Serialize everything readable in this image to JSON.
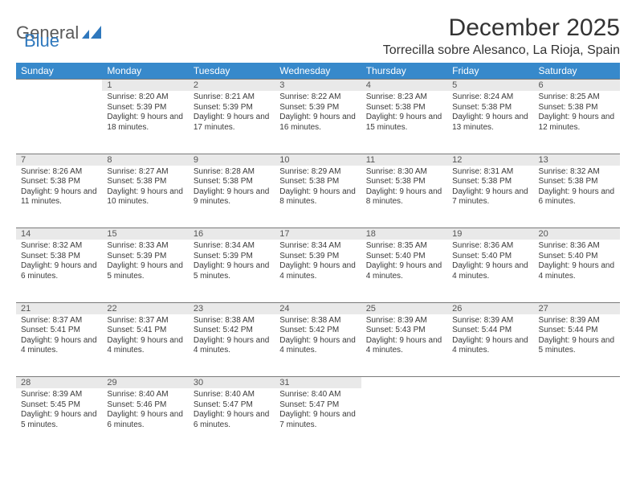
{
  "logo": {
    "text1": "General",
    "text2": "Blue"
  },
  "title": "December 2025",
  "location": "Torrecilla sobre Alesanco, La Rioja, Spain",
  "colors": {
    "header_bg": "#3789cb",
    "header_text": "#ffffff",
    "daynum_bg": "#e9e9e9",
    "daynum_border": "#7a7a7a",
    "body_text": "#3a3a3a",
    "logo_gray": "#5a5a5a",
    "logo_blue": "#2f78bd"
  },
  "weekdays": [
    "Sunday",
    "Monday",
    "Tuesday",
    "Wednesday",
    "Thursday",
    "Friday",
    "Saturday"
  ],
  "weeks": [
    [
      null,
      {
        "n": "1",
        "sr": "8:20 AM",
        "ss": "5:39 PM",
        "dl": "9 hours and 18 minutes."
      },
      {
        "n": "2",
        "sr": "8:21 AM",
        "ss": "5:39 PM",
        "dl": "9 hours and 17 minutes."
      },
      {
        "n": "3",
        "sr": "8:22 AM",
        "ss": "5:39 PM",
        "dl": "9 hours and 16 minutes."
      },
      {
        "n": "4",
        "sr": "8:23 AM",
        "ss": "5:38 PM",
        "dl": "9 hours and 15 minutes."
      },
      {
        "n": "5",
        "sr": "8:24 AM",
        "ss": "5:38 PM",
        "dl": "9 hours and 13 minutes."
      },
      {
        "n": "6",
        "sr": "8:25 AM",
        "ss": "5:38 PM",
        "dl": "9 hours and 12 minutes."
      }
    ],
    [
      {
        "n": "7",
        "sr": "8:26 AM",
        "ss": "5:38 PM",
        "dl": "9 hours and 11 minutes."
      },
      {
        "n": "8",
        "sr": "8:27 AM",
        "ss": "5:38 PM",
        "dl": "9 hours and 10 minutes."
      },
      {
        "n": "9",
        "sr": "8:28 AM",
        "ss": "5:38 PM",
        "dl": "9 hours and 9 minutes."
      },
      {
        "n": "10",
        "sr": "8:29 AM",
        "ss": "5:38 PM",
        "dl": "9 hours and 8 minutes."
      },
      {
        "n": "11",
        "sr": "8:30 AM",
        "ss": "5:38 PM",
        "dl": "9 hours and 8 minutes."
      },
      {
        "n": "12",
        "sr": "8:31 AM",
        "ss": "5:38 PM",
        "dl": "9 hours and 7 minutes."
      },
      {
        "n": "13",
        "sr": "8:32 AM",
        "ss": "5:38 PM",
        "dl": "9 hours and 6 minutes."
      }
    ],
    [
      {
        "n": "14",
        "sr": "8:32 AM",
        "ss": "5:38 PM",
        "dl": "9 hours and 6 minutes."
      },
      {
        "n": "15",
        "sr": "8:33 AM",
        "ss": "5:39 PM",
        "dl": "9 hours and 5 minutes."
      },
      {
        "n": "16",
        "sr": "8:34 AM",
        "ss": "5:39 PM",
        "dl": "9 hours and 5 minutes."
      },
      {
        "n": "17",
        "sr": "8:34 AM",
        "ss": "5:39 PM",
        "dl": "9 hours and 4 minutes."
      },
      {
        "n": "18",
        "sr": "8:35 AM",
        "ss": "5:40 PM",
        "dl": "9 hours and 4 minutes."
      },
      {
        "n": "19",
        "sr": "8:36 AM",
        "ss": "5:40 PM",
        "dl": "9 hours and 4 minutes."
      },
      {
        "n": "20",
        "sr": "8:36 AM",
        "ss": "5:40 PM",
        "dl": "9 hours and 4 minutes."
      }
    ],
    [
      {
        "n": "21",
        "sr": "8:37 AM",
        "ss": "5:41 PM",
        "dl": "9 hours and 4 minutes."
      },
      {
        "n": "22",
        "sr": "8:37 AM",
        "ss": "5:41 PM",
        "dl": "9 hours and 4 minutes."
      },
      {
        "n": "23",
        "sr": "8:38 AM",
        "ss": "5:42 PM",
        "dl": "9 hours and 4 minutes."
      },
      {
        "n": "24",
        "sr": "8:38 AM",
        "ss": "5:42 PM",
        "dl": "9 hours and 4 minutes."
      },
      {
        "n": "25",
        "sr": "8:39 AM",
        "ss": "5:43 PM",
        "dl": "9 hours and 4 minutes."
      },
      {
        "n": "26",
        "sr": "8:39 AM",
        "ss": "5:44 PM",
        "dl": "9 hours and 4 minutes."
      },
      {
        "n": "27",
        "sr": "8:39 AM",
        "ss": "5:44 PM",
        "dl": "9 hours and 5 minutes."
      }
    ],
    [
      {
        "n": "28",
        "sr": "8:39 AM",
        "ss": "5:45 PM",
        "dl": "9 hours and 5 minutes."
      },
      {
        "n": "29",
        "sr": "8:40 AM",
        "ss": "5:46 PM",
        "dl": "9 hours and 6 minutes."
      },
      {
        "n": "30",
        "sr": "8:40 AM",
        "ss": "5:47 PM",
        "dl": "9 hours and 6 minutes."
      },
      {
        "n": "31",
        "sr": "8:40 AM",
        "ss": "5:47 PM",
        "dl": "9 hours and 7 minutes."
      },
      null,
      null,
      null
    ]
  ],
  "labels": {
    "sunrise": "Sunrise:",
    "sunset": "Sunset:",
    "daylight": "Daylight:"
  }
}
